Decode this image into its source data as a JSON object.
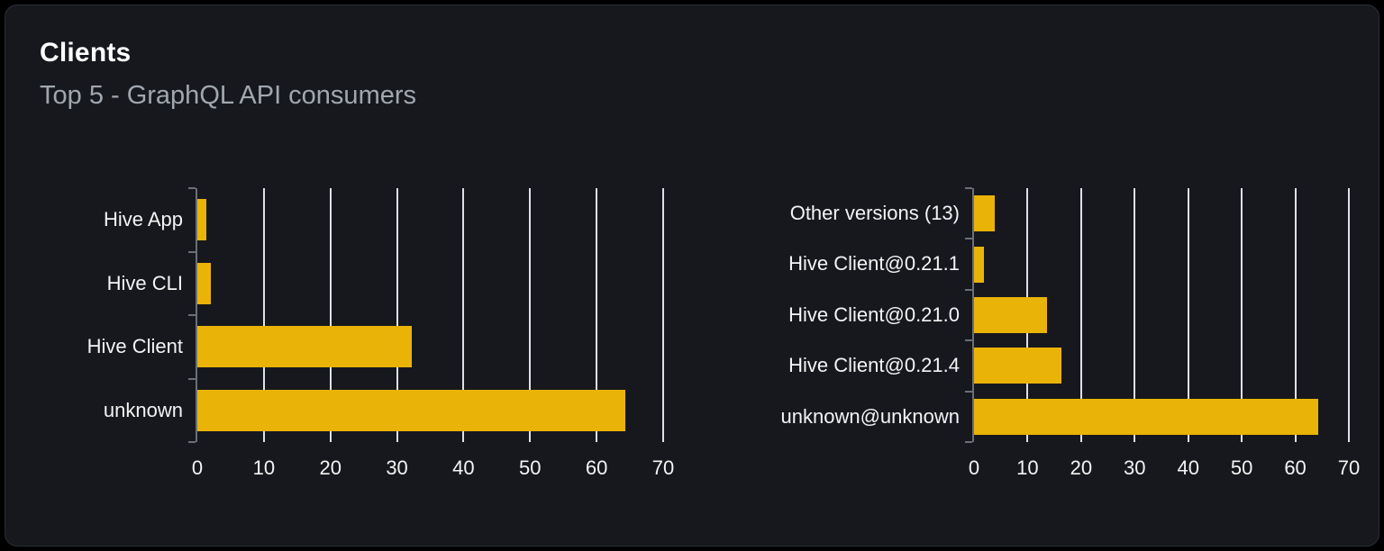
{
  "card": {
    "title": "Clients",
    "subtitle": "Top 5 - GraphQL API consumers"
  },
  "colors": {
    "page_bg": "#000000",
    "card_bg": "#16181d",
    "card_border": "#2b2e36",
    "title": "#ffffff",
    "subtitle": "#a1a7b0",
    "bar": "#eab308",
    "gridline": "#dde1e8",
    "axis": "#6b6f78",
    "tick_label": "#f4f4f5",
    "category_label": "#f4f4f5"
  },
  "chart_data": [
    {
      "type": "bar",
      "orientation": "horizontal",
      "title": "",
      "categories": [
        "Hive App",
        "Hive CLI",
        "Hive Client",
        "unknown"
      ],
      "values": [
        1.4,
        2,
        32.2,
        64.3
      ],
      "xlim": [
        0,
        70
      ],
      "xticks": [
        0,
        10,
        20,
        30,
        40,
        50,
        60,
        70
      ],
      "grid": true,
      "legend": false,
      "bar_color": "#eab308"
    },
    {
      "type": "bar",
      "orientation": "horizontal",
      "title": "",
      "categories": [
        "Other versions (13)",
        "Hive Client@0.21.1",
        "Hive Client@0.21.0",
        "Hive Client@0.21.4",
        "unknown@unknown"
      ],
      "values": [
        3.9,
        1.8,
        13.7,
        16.4,
        64.3
      ],
      "xlim": [
        0,
        70
      ],
      "xticks": [
        0,
        10,
        20,
        30,
        40,
        50,
        60,
        70
      ],
      "grid": true,
      "legend": false,
      "bar_color": "#eab308"
    }
  ]
}
